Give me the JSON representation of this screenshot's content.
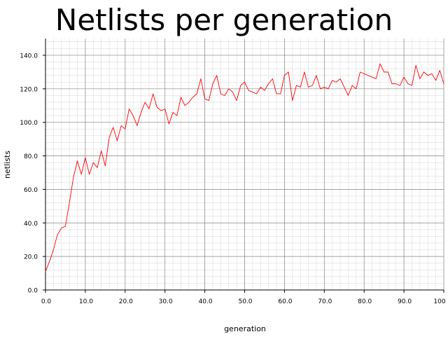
{
  "chart_data": {
    "type": "line",
    "title": "Netlists per generation",
    "xlabel": "generation",
    "ylabel": "netlists",
    "xlim": [
      0,
      100
    ],
    "ylim": [
      0,
      150
    ],
    "x_ticks": [
      0,
      10,
      20,
      30,
      40,
      50,
      60,
      70,
      80,
      90,
      100
    ],
    "x_tick_labels": [
      "0.0",
      "10.0",
      "20.0",
      "30.0",
      "40.0",
      "50.0",
      "60.0",
      "70.0",
      "80.0",
      "90.0",
      "100"
    ],
    "y_ticks": [
      0,
      20,
      40,
      60,
      80,
      100,
      120,
      140
    ],
    "y_tick_labels": [
      "0.0",
      "20.0",
      "40.0",
      "60.0",
      "80.0",
      "100.0",
      "120.0",
      "140.0"
    ],
    "grid": true,
    "minor_grid": true,
    "line_color": "#ff0000",
    "series": [
      {
        "x": [
          0,
          1,
          2,
          3,
          4,
          5,
          6,
          7,
          8,
          9,
          10,
          11,
          12,
          13,
          14,
          15,
          16,
          17,
          18,
          19,
          20,
          21,
          22,
          23,
          24,
          25,
          26,
          27,
          28,
          29,
          30,
          31,
          32,
          33,
          34,
          35,
          36,
          37,
          38,
          39,
          40,
          41,
          42,
          43,
          44,
          45,
          46,
          47,
          48,
          49,
          50,
          51,
          52,
          53,
          54,
          55,
          56,
          57,
          58,
          59,
          60,
          61,
          62,
          63,
          64,
          65,
          66,
          67,
          68,
          69,
          70,
          71,
          72,
          73,
          74,
          75,
          76,
          77,
          78,
          79,
          80,
          81,
          82,
          83,
          84,
          85,
          86,
          87,
          88,
          89,
          90,
          91,
          92,
          93,
          94,
          95,
          96,
          97,
          98,
          99,
          100
        ],
        "values": [
          11,
          17,
          24,
          33,
          37,
          38,
          52,
          67,
          77,
          69,
          79,
          69,
          76,
          73,
          83,
          74,
          91,
          97,
          89,
          98,
          96,
          108,
          104,
          98,
          106,
          112,
          108,
          117,
          109,
          107,
          108,
          99,
          106,
          104,
          115,
          110,
          112,
          115,
          117,
          126,
          114,
          113,
          123,
          128,
          117,
          116,
          120,
          118,
          113,
          122,
          124,
          119,
          118,
          117,
          121,
          119,
          123,
          126,
          117,
          117,
          128,
          130,
          113,
          122,
          121,
          130,
          121,
          122,
          128,
          120,
          121,
          120,
          125,
          124,
          126,
          121,
          116,
          122,
          120,
          130,
          129,
          128,
          127,
          126,
          135,
          130,
          130,
          123,
          123,
          122,
          127,
          123,
          122,
          134,
          126,
          130,
          128,
          129,
          125,
          131,
          123
        ]
      }
    ]
  }
}
